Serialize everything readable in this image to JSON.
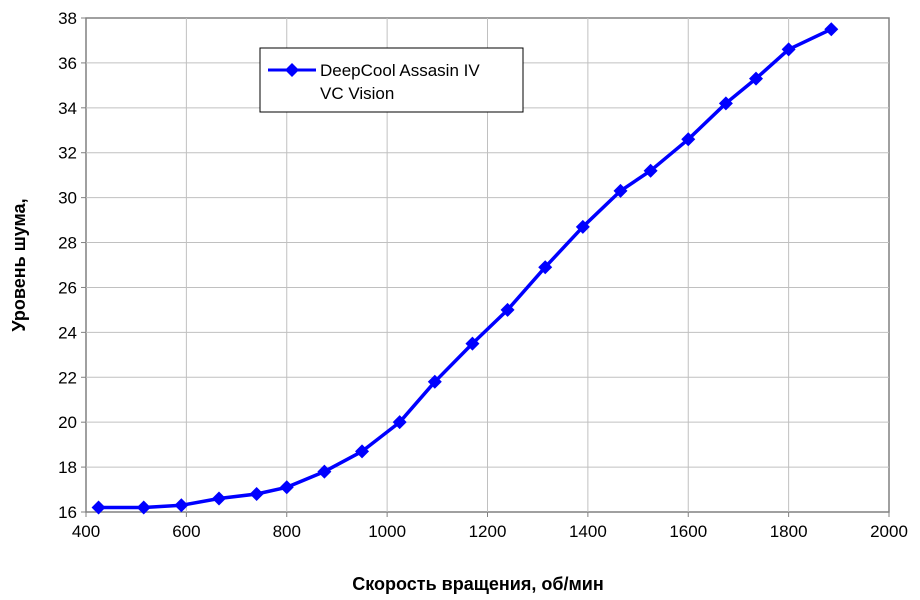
{
  "chart_data": {
    "type": "line",
    "title": "",
    "xlabel": "Скорость вращения, об/мин",
    "ylabel": "Уровень шума,",
    "xlim": [
      400,
      2000
    ],
    "ylim": [
      16,
      38
    ],
    "x_ticks": [
      400,
      600,
      800,
      1000,
      1200,
      1400,
      1600,
      1800,
      2000
    ],
    "y_ticks": [
      16,
      18,
      20,
      22,
      24,
      26,
      28,
      30,
      32,
      34,
      36,
      38
    ],
    "grid": true,
    "legend_position": "top-left",
    "series": [
      {
        "name": "DeepCool Assasin IV VC Vision",
        "name_lines": [
          "DeepCool Assasin IV",
          "VC Vision"
        ],
        "color": "#0000ff",
        "marker": "diamond",
        "x": [
          425,
          515,
          590,
          665,
          740,
          800,
          875,
          950,
          1025,
          1095,
          1170,
          1240,
          1315,
          1390,
          1465,
          1525,
          1600,
          1675,
          1735,
          1800,
          1885
        ],
        "y": [
          16.2,
          16.2,
          16.3,
          16.6,
          16.8,
          17.1,
          17.8,
          18.7,
          20.0,
          21.8,
          23.5,
          25.0,
          26.9,
          28.7,
          30.3,
          31.2,
          32.6,
          34.2,
          35.3,
          36.6,
          37.5
        ]
      }
    ]
  }
}
